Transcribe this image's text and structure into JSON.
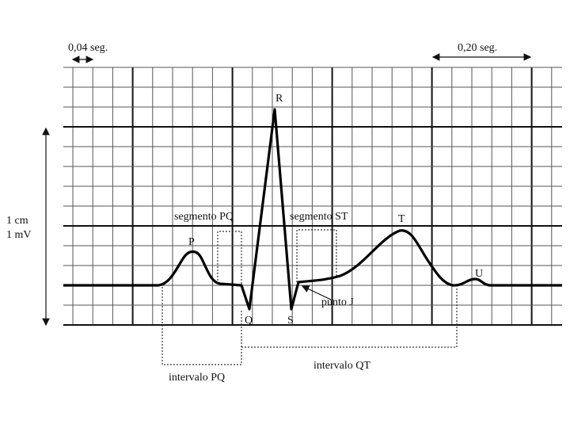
{
  "header": {
    "small_division": "0,04 seg.",
    "large_division": "0,20 seg."
  },
  "scale": {
    "height": "1 cm",
    "voltage": "1 mV"
  },
  "waves": {
    "p": "P",
    "q": "Q",
    "r": "R",
    "s": "S",
    "t": "T",
    "u": "U"
  },
  "segments": {
    "pq": "segmento PQ",
    "st": "segmento ST"
  },
  "points": {
    "j": "punto J"
  },
  "intervals": {
    "pq": "intervalo PQ",
    "qt": "intervalo QT"
  }
}
